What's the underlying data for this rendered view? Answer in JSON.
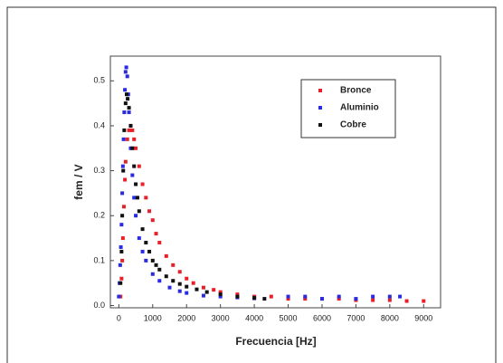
{
  "chart_data": {
    "type": "scatter",
    "xlabel": "Frecuencia [Hz]",
    "ylabel": "fem / V",
    "xlim": [
      -250,
      9500
    ],
    "ylim": [
      -0.005,
      0.555
    ],
    "xticks": [
      0,
      1000,
      2000,
      3000,
      4000,
      5000,
      6000,
      7000,
      8000,
      9000
    ],
    "yticks": [
      {
        "value": 0,
        "label": "0.0"
      },
      0.1,
      0.2,
      0.3,
      0.4,
      0.5
    ],
    "legend": "upper right",
    "series": [
      {
        "name": "Bronce",
        "color": "#e8202a",
        "x": [
          50,
          80,
          100,
          120,
          150,
          180,
          200,
          250,
          300,
          350,
          400,
          450,
          500,
          600,
          700,
          800,
          900,
          1000,
          1100,
          1200,
          1400,
          1600,
          1800,
          2000,
          2200,
          2500,
          2800,
          3000,
          3500,
          4000,
          4500,
          5000,
          5500,
          6000,
          6500,
          7000,
          7500,
          8000,
          8500,
          9000
        ],
        "values": [
          0.02,
          0.06,
          0.1,
          0.15,
          0.22,
          0.28,
          0.32,
          0.37,
          0.39,
          0.4,
          0.39,
          0.37,
          0.35,
          0.31,
          0.27,
          0.24,
          0.21,
          0.19,
          0.16,
          0.14,
          0.11,
          0.09,
          0.075,
          0.06,
          0.05,
          0.04,
          0.035,
          0.03,
          0.025,
          0.02,
          0.02,
          0.015,
          0.015,
          0.015,
          0.015,
          0.012,
          0.012,
          0.012,
          0.01,
          0.01
        ]
      },
      {
        "name": "Aluminio",
        "color": "#2a2ae0",
        "x": [
          0,
          20,
          40,
          60,
          80,
          100,
          120,
          140,
          160,
          180,
          200,
          220,
          250,
          280,
          300,
          350,
          400,
          450,
          500,
          600,
          700,
          800,
          1000,
          1200,
          1500,
          1800,
          2000,
          2500,
          3000,
          3500,
          4000,
          5000,
          5500,
          6000,
          6500,
          7000,
          7500,
          8000,
          8300
        ],
        "values": [
          0.02,
          0.05,
          0.09,
          0.13,
          0.18,
          0.25,
          0.31,
          0.37,
          0.43,
          0.48,
          0.52,
          0.53,
          0.51,
          0.47,
          0.43,
          0.35,
          0.29,
          0.24,
          0.2,
          0.15,
          0.12,
          0.1,
          0.07,
          0.055,
          0.04,
          0.032,
          0.028,
          0.022,
          0.02,
          0.018,
          0.016,
          0.02,
          0.02,
          0.015,
          0.02,
          0.015,
          0.02,
          0.02,
          0.02
        ]
      },
      {
        "name": "Cobre",
        "color": "#111111",
        "x": [
          50,
          80,
          100,
          130,
          160,
          200,
          230,
          260,
          300,
          350,
          400,
          450,
          500,
          550,
          600,
          700,
          800,
          900,
          1000,
          1100,
          1200,
          1400,
          1600,
          1800,
          2000,
          2300,
          2600,
          3000,
          3500,
          4000,
          4300
        ],
        "values": [
          0.05,
          0.12,
          0.2,
          0.3,
          0.39,
          0.45,
          0.47,
          0.46,
          0.44,
          0.4,
          0.35,
          0.31,
          0.27,
          0.24,
          0.21,
          0.17,
          0.14,
          0.12,
          0.1,
          0.09,
          0.08,
          0.065,
          0.055,
          0.048,
          0.042,
          0.036,
          0.03,
          0.025,
          0.02,
          0.017,
          0.015
        ]
      }
    ]
  }
}
